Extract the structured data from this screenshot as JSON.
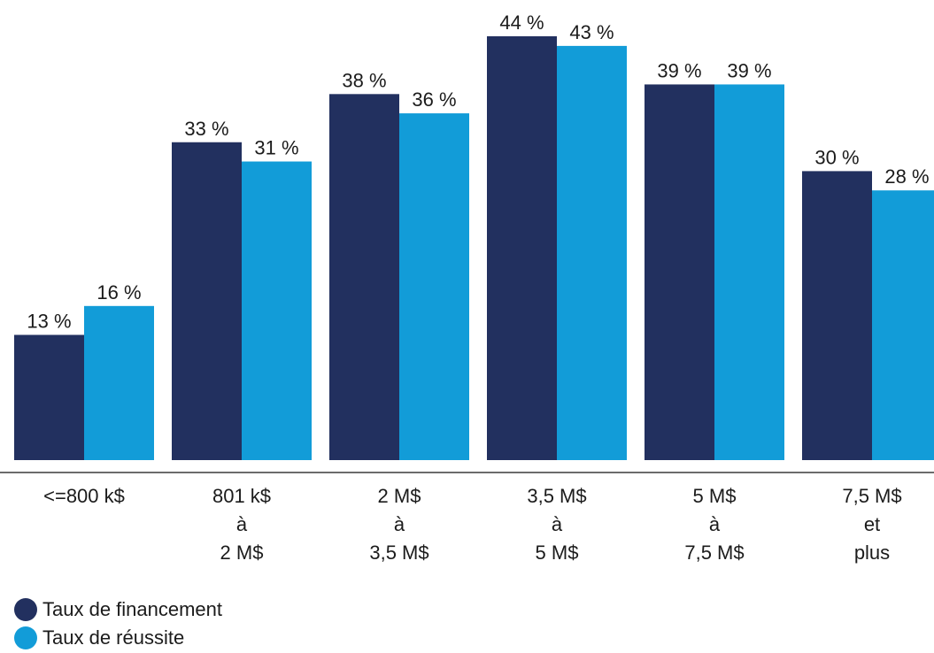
{
  "chart_data": {
    "type": "bar",
    "categories": [
      [
        "<=800 k$"
      ],
      [
        "801 k$",
        "à",
        "2 M$"
      ],
      [
        "2 M$",
        "à",
        "3,5 M$"
      ],
      [
        "3,5 M$",
        "à",
        "5 M$"
      ],
      [
        "5 M$",
        "à",
        "7,5 M$"
      ],
      [
        "7,5 M$",
        "et",
        "plus"
      ]
    ],
    "series": [
      {
        "name": "Taux de financement",
        "color": "#22305f",
        "values": [
          13,
          33,
          38,
          44,
          39,
          30
        ],
        "labels": [
          "13 %",
          "33 %",
          "38 %",
          "44 %",
          "39 %",
          "30 %"
        ]
      },
      {
        "name": "Taux de réussite",
        "color": "#129cd8",
        "values": [
          16,
          31,
          36,
          43,
          39,
          28
        ],
        "labels": [
          "16 %",
          "31 %",
          "36 %",
          "43 %",
          "39 %",
          "28 %"
        ]
      }
    ],
    "ylim": [
      0,
      44
    ],
    "grid": false,
    "legend_position": "bottom-left"
  }
}
